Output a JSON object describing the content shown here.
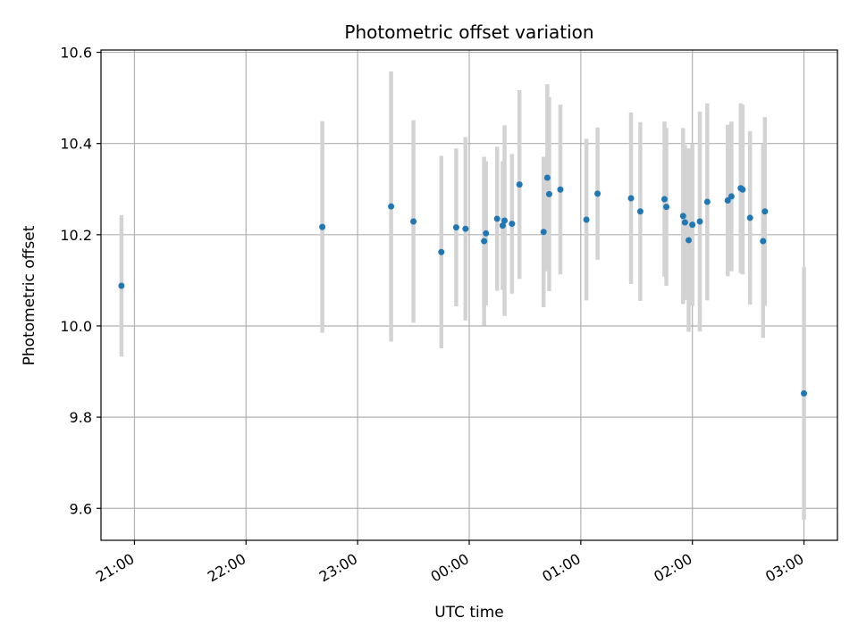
{
  "chart_data": {
    "type": "scatter",
    "title": "Photometric offset variation",
    "xlabel": "UTC time",
    "ylabel": "Photometric offset",
    "x_unit": "UTC time (HH:MM), 20:42 to 03:18 across midnight",
    "xlim": [
      "20:42",
      "03:18"
    ],
    "ylim": [
      9.53,
      10.605
    ],
    "x_ticks": [
      "21:00",
      "22:00",
      "23:00",
      "00:00",
      "01:00",
      "02:00",
      "03:00"
    ],
    "y_ticks": [
      "9.6",
      "9.8",
      "10.0",
      "10.2",
      "10.4",
      "10.6"
    ],
    "y_tick_values": [
      9.6,
      9.8,
      10.0,
      10.2,
      10.4,
      10.6
    ],
    "grid": true,
    "marker_color": "#1f77b4",
    "errorbar_color": "#d3d3d3",
    "points": [
      {
        "x": "20:53",
        "y": 10.088,
        "err": 0.155
      },
      {
        "x": "22:41",
        "y": 10.217,
        "err": 0.232
      },
      {
        "x": "23:18",
        "y": 10.262,
        "err": 0.296
      },
      {
        "x": "23:30",
        "y": 10.229,
        "err": 0.222
      },
      {
        "x": "23:45",
        "y": 10.162,
        "err": 0.211
      },
      {
        "x": "23:53",
        "y": 10.216,
        "err": 0.173
      },
      {
        "x": "23:58",
        "y": 10.213,
        "err": 0.201
      },
      {
        "x": "00:08",
        "y": 10.186,
        "err": 0.185
      },
      {
        "x": "00:09",
        "y": 10.203,
        "err": 0.158
      },
      {
        "x": "00:15",
        "y": 10.235,
        "err": 0.158
      },
      {
        "x": "00:18",
        "y": 10.22,
        "err": 0.141
      },
      {
        "x": "00:19",
        "y": 10.231,
        "err": 0.209
      },
      {
        "x": "00:23",
        "y": 10.224,
        "err": 0.153
      },
      {
        "x": "00:27",
        "y": 10.31,
        "err": 0.207
      },
      {
        "x": "00:40",
        "y": 10.206,
        "err": 0.165
      },
      {
        "x": "00:42",
        "y": 10.325,
        "err": 0.205
      },
      {
        "x": "00:43",
        "y": 10.289,
        "err": 0.213
      },
      {
        "x": "00:49",
        "y": 10.299,
        "err": 0.186
      },
      {
        "x": "01:03",
        "y": 10.233,
        "err": 0.177
      },
      {
        "x": "01:09",
        "y": 10.29,
        "err": 0.145
      },
      {
        "x": "01:27",
        "y": 10.28,
        "err": 0.188
      },
      {
        "x": "01:32",
        "y": 10.251,
        "err": 0.196
      },
      {
        "x": "01:45",
        "y": 10.278,
        "err": 0.17
      },
      {
        "x": "01:46",
        "y": 10.261,
        "err": 0.173
      },
      {
        "x": "01:55",
        "y": 10.241,
        "err": 0.193
      },
      {
        "x": "01:56",
        "y": 10.227,
        "err": 0.17
      },
      {
        "x": "01:58",
        "y": 10.188,
        "err": 0.201
      },
      {
        "x": "02:00",
        "y": 10.222,
        "err": 0.178
      },
      {
        "x": "02:04",
        "y": 10.229,
        "err": 0.241
      },
      {
        "x": "02:08",
        "y": 10.272,
        "err": 0.216
      },
      {
        "x": "02:19",
        "y": 10.275,
        "err": 0.166
      },
      {
        "x": "02:21",
        "y": 10.284,
        "err": 0.164
      },
      {
        "x": "02:26",
        "y": 10.302,
        "err": 0.186
      },
      {
        "x": "02:27",
        "y": 10.299,
        "err": 0.186
      },
      {
        "x": "02:31",
        "y": 10.237,
        "err": 0.19
      },
      {
        "x": "02:38",
        "y": 10.186,
        "err": 0.212
      },
      {
        "x": "02:39",
        "y": 10.251,
        "err": 0.207
      },
      {
        "x": "03:00",
        "y": 9.852,
        "err": 0.277
      }
    ]
  }
}
